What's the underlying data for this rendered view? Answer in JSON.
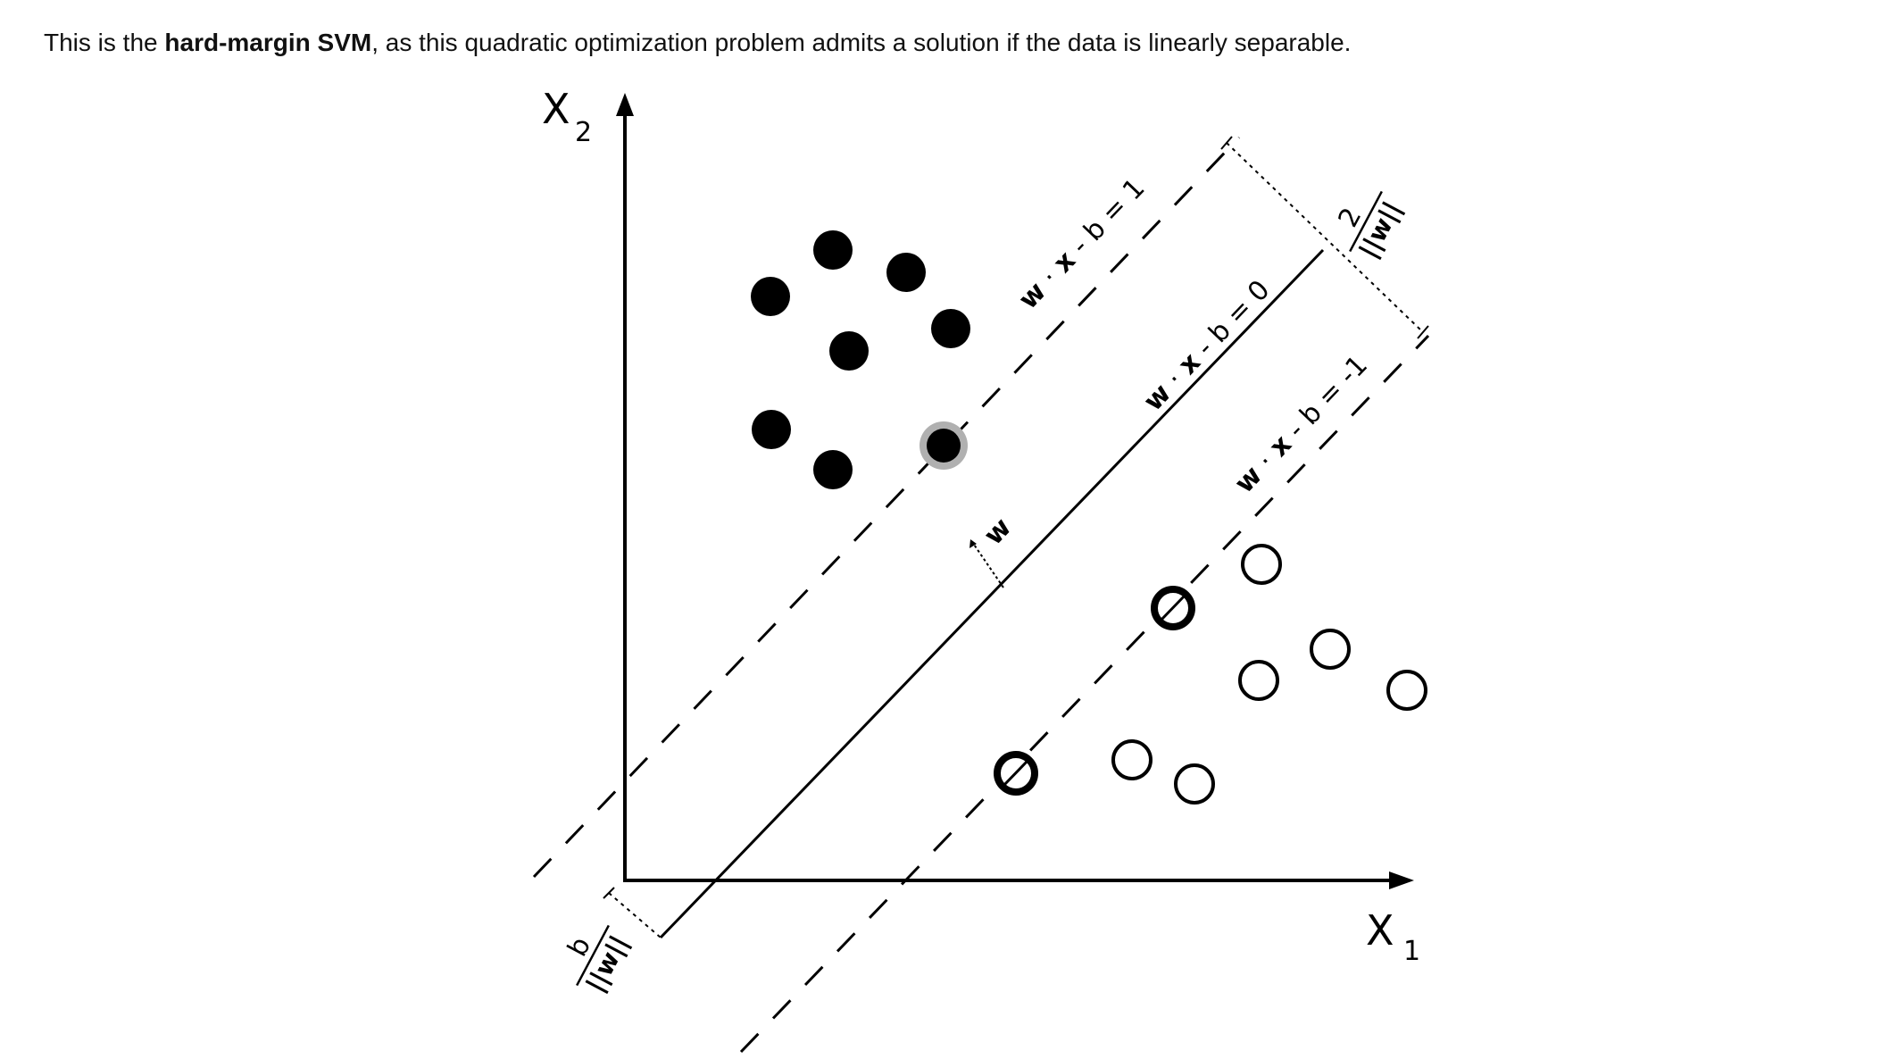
{
  "caption": {
    "prefix": "This is the ",
    "bold": "hard-margin SVM",
    "suffix": ", as this quadratic optimization problem admits a solution if the data is linearly separable."
  },
  "diagram": {
    "axes": {
      "x_letter": "X",
      "x_sub": "1",
      "y_letter": "X",
      "y_sub": "2"
    },
    "lines": {
      "upper_margin_label": "w·x - b = 1",
      "upper_margin_w": "w",
      "upper_margin_x": "x",
      "upper_margin_rest": " - b = 1",
      "hyperplane_w": "w",
      "hyperplane_x": "x",
      "hyperplane_rest": " - b = 0",
      "lower_margin_w": "w",
      "lower_margin_x": "x",
      "lower_margin_rest": " - b = -1"
    },
    "normal_vector_label": "w",
    "margin_width": {
      "numerator": "2",
      "denominator": "||w||"
    },
    "offset": {
      "numerator": "b",
      "denominator": "||w||"
    },
    "colors": {
      "ink": "#000000",
      "support_halo": "#b0b0b0"
    }
  }
}
